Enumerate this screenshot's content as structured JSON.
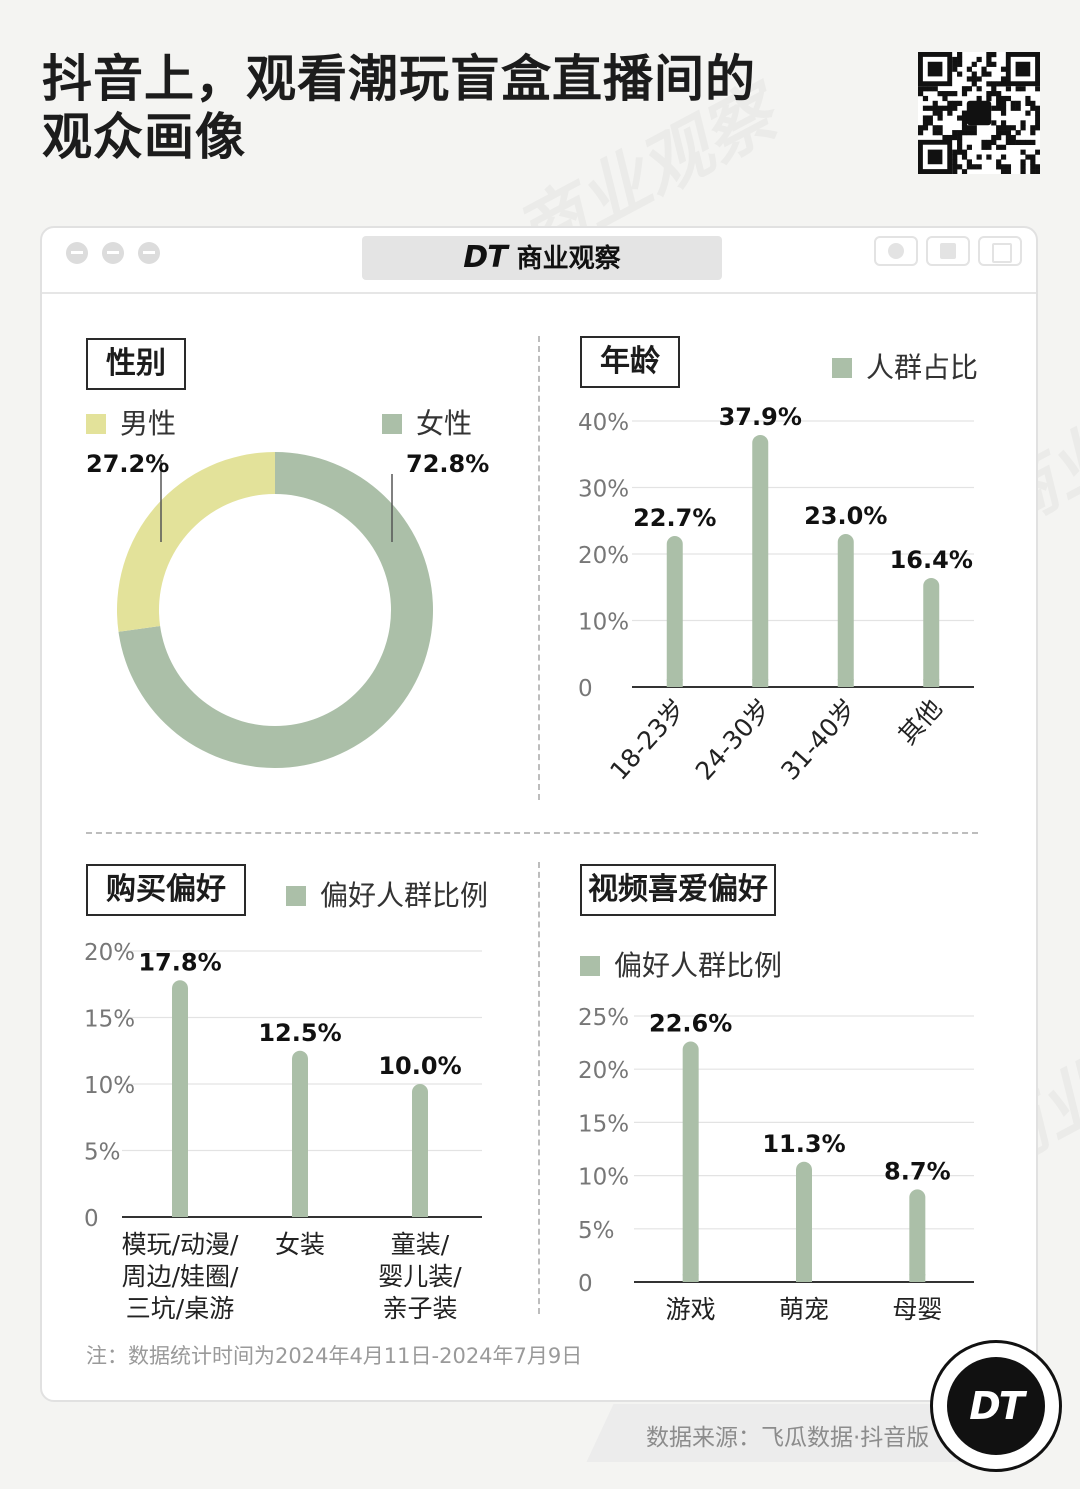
{
  "header": {
    "title_line1": "抖音上，观看潮玩盲盒直播间的",
    "title_line2": "观众画像"
  },
  "window": {
    "brand_dt": "DT",
    "brand_name": "商业观察"
  },
  "colors": {
    "female": "#abbfa8",
    "male": "#e3e29a",
    "bar": "#abbfa8",
    "grid": "#e3e3e3",
    "axis": "#333333"
  },
  "sections": {
    "gender": {
      "tag": "性别",
      "legend_male": "男性",
      "legend_female": "女性"
    },
    "age": {
      "tag": "年龄",
      "legend": "人群占比"
    },
    "purchase": {
      "tag": "购买偏好",
      "legend": "偏好人群比例"
    },
    "video": {
      "tag": "视频喜爱偏好",
      "legend": "偏好人群比例"
    }
  },
  "chart_data": [
    {
      "type": "pie",
      "variant": "donut",
      "labels": [
        "男性",
        "女性"
      ],
      "values": [
        27.2,
        72.8
      ],
      "value_labels": [
        "27.2%",
        "72.8%"
      ],
      "legend_placement": "top"
    },
    {
      "type": "bar",
      "categories": [
        "18-23岁",
        "24-30岁",
        "31-40岁",
        "其他"
      ],
      "values": [
        22.7,
        37.9,
        23.0,
        16.4
      ],
      "value_labels": [
        "22.7%",
        "37.9%",
        "23.0%",
        "16.4%"
      ],
      "ylim": [
        0,
        40
      ],
      "yticks": [
        "0",
        "10%",
        "20%",
        "30%",
        "40%"
      ],
      "grid": true,
      "legend_placement": "top-right"
    },
    {
      "type": "bar",
      "categories": [
        [
          "模玩/动漫/",
          "周边/娃圈/",
          "三坑/桌游"
        ],
        [
          "女装"
        ],
        [
          "童装/",
          "婴儿装/",
          "亲子装"
        ]
      ],
      "values": [
        17.8,
        12.5,
        10.0
      ],
      "value_labels": [
        "17.8%",
        "12.5%",
        "10.0%"
      ],
      "ylim": [
        0,
        20
      ],
      "yticks": [
        "0",
        "5%",
        "10%",
        "15%",
        "20%"
      ],
      "grid": true,
      "legend_placement": "top-right"
    },
    {
      "type": "bar",
      "categories": [
        "游戏",
        "萌宠",
        "母婴"
      ],
      "values": [
        22.6,
        11.3,
        8.7
      ],
      "value_labels": [
        "22.6%",
        "11.3%",
        "8.7%"
      ],
      "ylim": [
        0,
        25
      ],
      "yticks": [
        "0",
        "5%",
        "10%",
        "15%",
        "20%",
        "25%"
      ],
      "grid": true,
      "legend_placement": "top-left"
    }
  ],
  "footer": {
    "note": "注：数据统计时间为2024年4月11日-2024年7月9日",
    "source": "数据来源：飞瓜数据·抖音版",
    "logo": "DT"
  }
}
